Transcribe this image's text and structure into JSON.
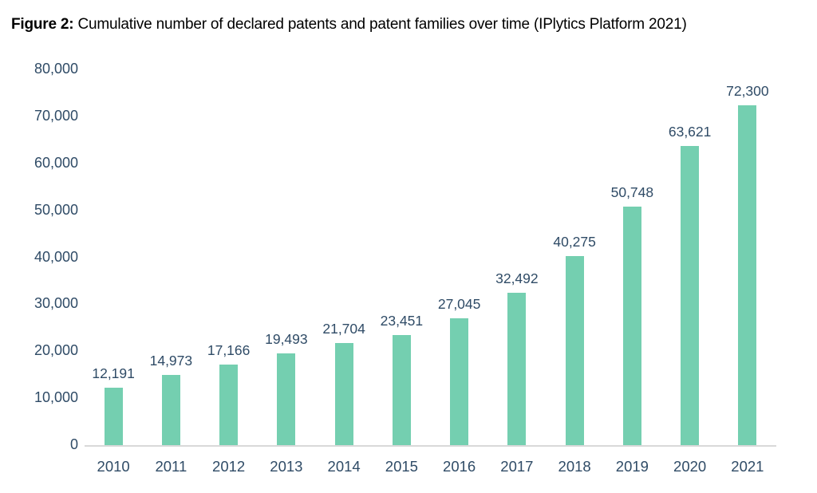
{
  "figure": {
    "title_prefix": "Figure 2:",
    "title_rest": " Cumulative number of declared patents and patent families over time (IPlytics Platform 2021)"
  },
  "chart_data": {
    "type": "bar",
    "title": "Figure 2: Cumulative number of declared patents and patent families over time (IPlytics Platform 2021)",
    "categories": [
      "2010",
      "2011",
      "2012",
      "2013",
      "2014",
      "2015",
      "2016",
      "2017",
      "2018",
      "2019",
      "2020",
      "2021"
    ],
    "values": [
      12191,
      14973,
      17166,
      19493,
      21704,
      23451,
      27045,
      32492,
      40275,
      50748,
      63621,
      72300
    ],
    "value_labels": [
      "12,191",
      "14,973",
      "17,166",
      "19,493",
      "21,704",
      "23,451",
      "27,045",
      "32,492",
      "40,275",
      "50,748",
      "63,621",
      "72,300"
    ],
    "xlabel": "",
    "ylabel": "",
    "ylim": [
      0,
      80000
    ],
    "ytick_interval": 10000,
    "ytick_labels": [
      "0",
      "10,000",
      "20,000",
      "30,000",
      "40,000",
      "50,000",
      "60,000",
      "70,000",
      "80,000"
    ],
    "grid": false,
    "legend": "none",
    "colors": {
      "bar": "#74CFB0",
      "label": "#2F4B66",
      "axis_line": "#D9D9D9",
      "title": "#000000",
      "background": "#FFFFFF"
    }
  }
}
